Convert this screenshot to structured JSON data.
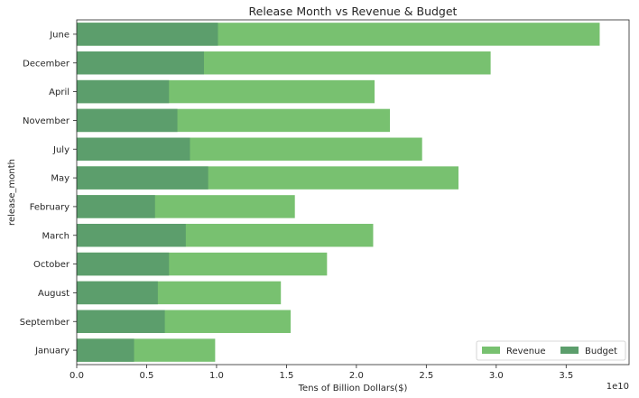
{
  "chart_data": {
    "type": "bar",
    "orientation": "horizontal",
    "title": "Release Month vs Revenue & Budget",
    "xlabel": "Tens of Billion Dollars($)",
    "ylabel": "release_month",
    "x_offset_text": "1e10",
    "xlim": [
      0,
      3.95
    ],
    "xticks": [
      "0.0",
      "0.5",
      "1.0",
      "1.5",
      "2.0",
      "2.5",
      "3.0",
      "3.5"
    ],
    "grid": false,
    "legend_position": "lower-right",
    "categories": [
      "June",
      "December",
      "April",
      "November",
      "July",
      "May",
      "February",
      "March",
      "October",
      "August",
      "September",
      "January"
    ],
    "series": [
      {
        "name": "Revenue",
        "color": "#78c170",
        "values": [
          3.74,
          2.96,
          2.13,
          2.24,
          2.47,
          2.73,
          1.56,
          2.12,
          1.79,
          1.46,
          1.53,
          0.99
        ]
      },
      {
        "name": "Budget",
        "color": "#5c9e6c",
        "values": [
          1.01,
          0.91,
          0.66,
          0.72,
          0.81,
          0.94,
          0.56,
          0.78,
          0.66,
          0.58,
          0.63,
          0.41
        ]
      }
    ]
  }
}
